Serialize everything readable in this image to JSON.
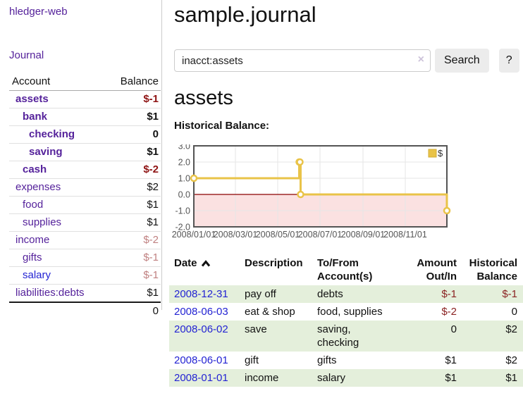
{
  "app": {
    "brand": "hledger-web",
    "nav_journal": "Journal"
  },
  "colors": {
    "accent_purple": "#55229b",
    "link_blue": "#2323d3",
    "negative_strong": "#8f1414",
    "negative_soft": "#c08181",
    "table_negative": "#8b2323",
    "row_stripe_green": "#e4efdb",
    "chart_series_gold": "#e9c348",
    "chart_negative_region": "#fbe1e1",
    "chart_zero_line": "#8b0000"
  },
  "sidebar": {
    "header": {
      "account": "Account",
      "balance": "Balance"
    },
    "accounts": [
      {
        "name": "assets",
        "depth": 1,
        "in_acct": true,
        "balance": "$-1",
        "balance_style": "neg-strong"
      },
      {
        "name": "bank",
        "depth": 2,
        "in_acct": true,
        "balance": "$1",
        "balance_style": "pos"
      },
      {
        "name": "checking",
        "depth": 3,
        "in_acct": true,
        "balance": "0",
        "balance_style": "pos"
      },
      {
        "name": "saving",
        "depth": 3,
        "in_acct": true,
        "balance": "$1",
        "balance_style": "pos"
      },
      {
        "name": "cash",
        "depth": 2,
        "in_acct": true,
        "balance": "$-2",
        "balance_style": "neg-strong"
      },
      {
        "name": "expenses",
        "depth": 1,
        "in_acct": false,
        "balance": "$2",
        "balance_style": "pos"
      },
      {
        "name": "food",
        "depth": 2,
        "in_acct": false,
        "balance": "$1",
        "balance_style": "pos"
      },
      {
        "name": "supplies",
        "depth": 2,
        "in_acct": false,
        "balance": "$1",
        "balance_style": "pos"
      },
      {
        "name": "income",
        "depth": 1,
        "in_acct": false,
        "balance": "$-2",
        "balance_style": "neg-soft"
      },
      {
        "name": "gifts",
        "depth": 2,
        "in_acct": false,
        "balance": "$-1",
        "balance_style": "neg-soft"
      },
      {
        "name": "salary",
        "depth": 2,
        "in_acct": false,
        "link_color": "blue",
        "balance": "$-1",
        "balance_style": "neg-soft"
      },
      {
        "name": "liabilities:debts",
        "depth": 1,
        "in_acct": false,
        "balance": "$1",
        "balance_style": "pos"
      }
    ],
    "total": "0"
  },
  "header": {
    "title": "sample.journal"
  },
  "search": {
    "value": "inacct:assets",
    "clear_icon": "×",
    "button_label": "Search",
    "help_label": "?"
  },
  "account_page": {
    "heading": "assets",
    "chart_label": "Historical Balance:"
  },
  "chart_data": {
    "type": "line",
    "title": "Historical Balance:",
    "step": true,
    "series": [
      {
        "name": "$",
        "color": "#e9c348",
        "points": [
          [
            "2008-01-01",
            1
          ],
          [
            "2008-06-01",
            2
          ],
          [
            "2008-06-02",
            2
          ],
          [
            "2008-06-03",
            0
          ],
          [
            "2008-12-31",
            -1
          ]
        ]
      }
    ],
    "xlim": [
      "2008-01-01",
      "2008-12-31"
    ],
    "ylim": [
      -2,
      3
    ],
    "x_ticks": [
      "2008/01/01",
      "2008/03/01",
      "2008/05/01",
      "2008/07/01",
      "2008/09/01",
      "2008/11/01"
    ],
    "y_tick_labels": [
      "3.0",
      "2.0",
      "1.0",
      "0.0",
      "-1.0",
      "-2.0"
    ],
    "y_tick_values": [
      3,
      2,
      1,
      0,
      -1,
      -2
    ],
    "grid": true,
    "legend": {
      "label": "$",
      "position": "top-right"
    },
    "negative_region_color": "#fbe1e1",
    "zero_line_color": "#8b0000"
  },
  "register": {
    "columns": [
      {
        "label": "Date",
        "sort": "asc",
        "sort_icon": "chevron-up-icon"
      },
      {
        "label": "Description"
      },
      {
        "label": "To/From Account(s)"
      },
      {
        "label": "Amount Out/In"
      },
      {
        "label": "Historical Balance"
      }
    ],
    "rows": [
      {
        "date": "2008-12-31",
        "description": "pay off",
        "accounts": "debts",
        "amount": "$-1",
        "amount_neg": true,
        "balance": "$-1",
        "balance_neg": true
      },
      {
        "date": "2008-06-03",
        "description": "eat & shop",
        "accounts": "food, supplies",
        "amount": "$-2",
        "amount_neg": true,
        "balance": "0",
        "balance_neg": false
      },
      {
        "date": "2008-06-02",
        "description": "save",
        "accounts": "saving, checking",
        "amount": "0",
        "amount_neg": false,
        "balance": "$2",
        "balance_neg": false
      },
      {
        "date": "2008-06-01",
        "description": "gift",
        "accounts": "gifts",
        "amount": "$1",
        "amount_neg": false,
        "balance": "$2",
        "balance_neg": false
      },
      {
        "date": "2008-01-01",
        "description": "income",
        "accounts": "salary",
        "amount": "$1",
        "amount_neg": false,
        "balance": "$1",
        "balance_neg": false
      }
    ]
  }
}
